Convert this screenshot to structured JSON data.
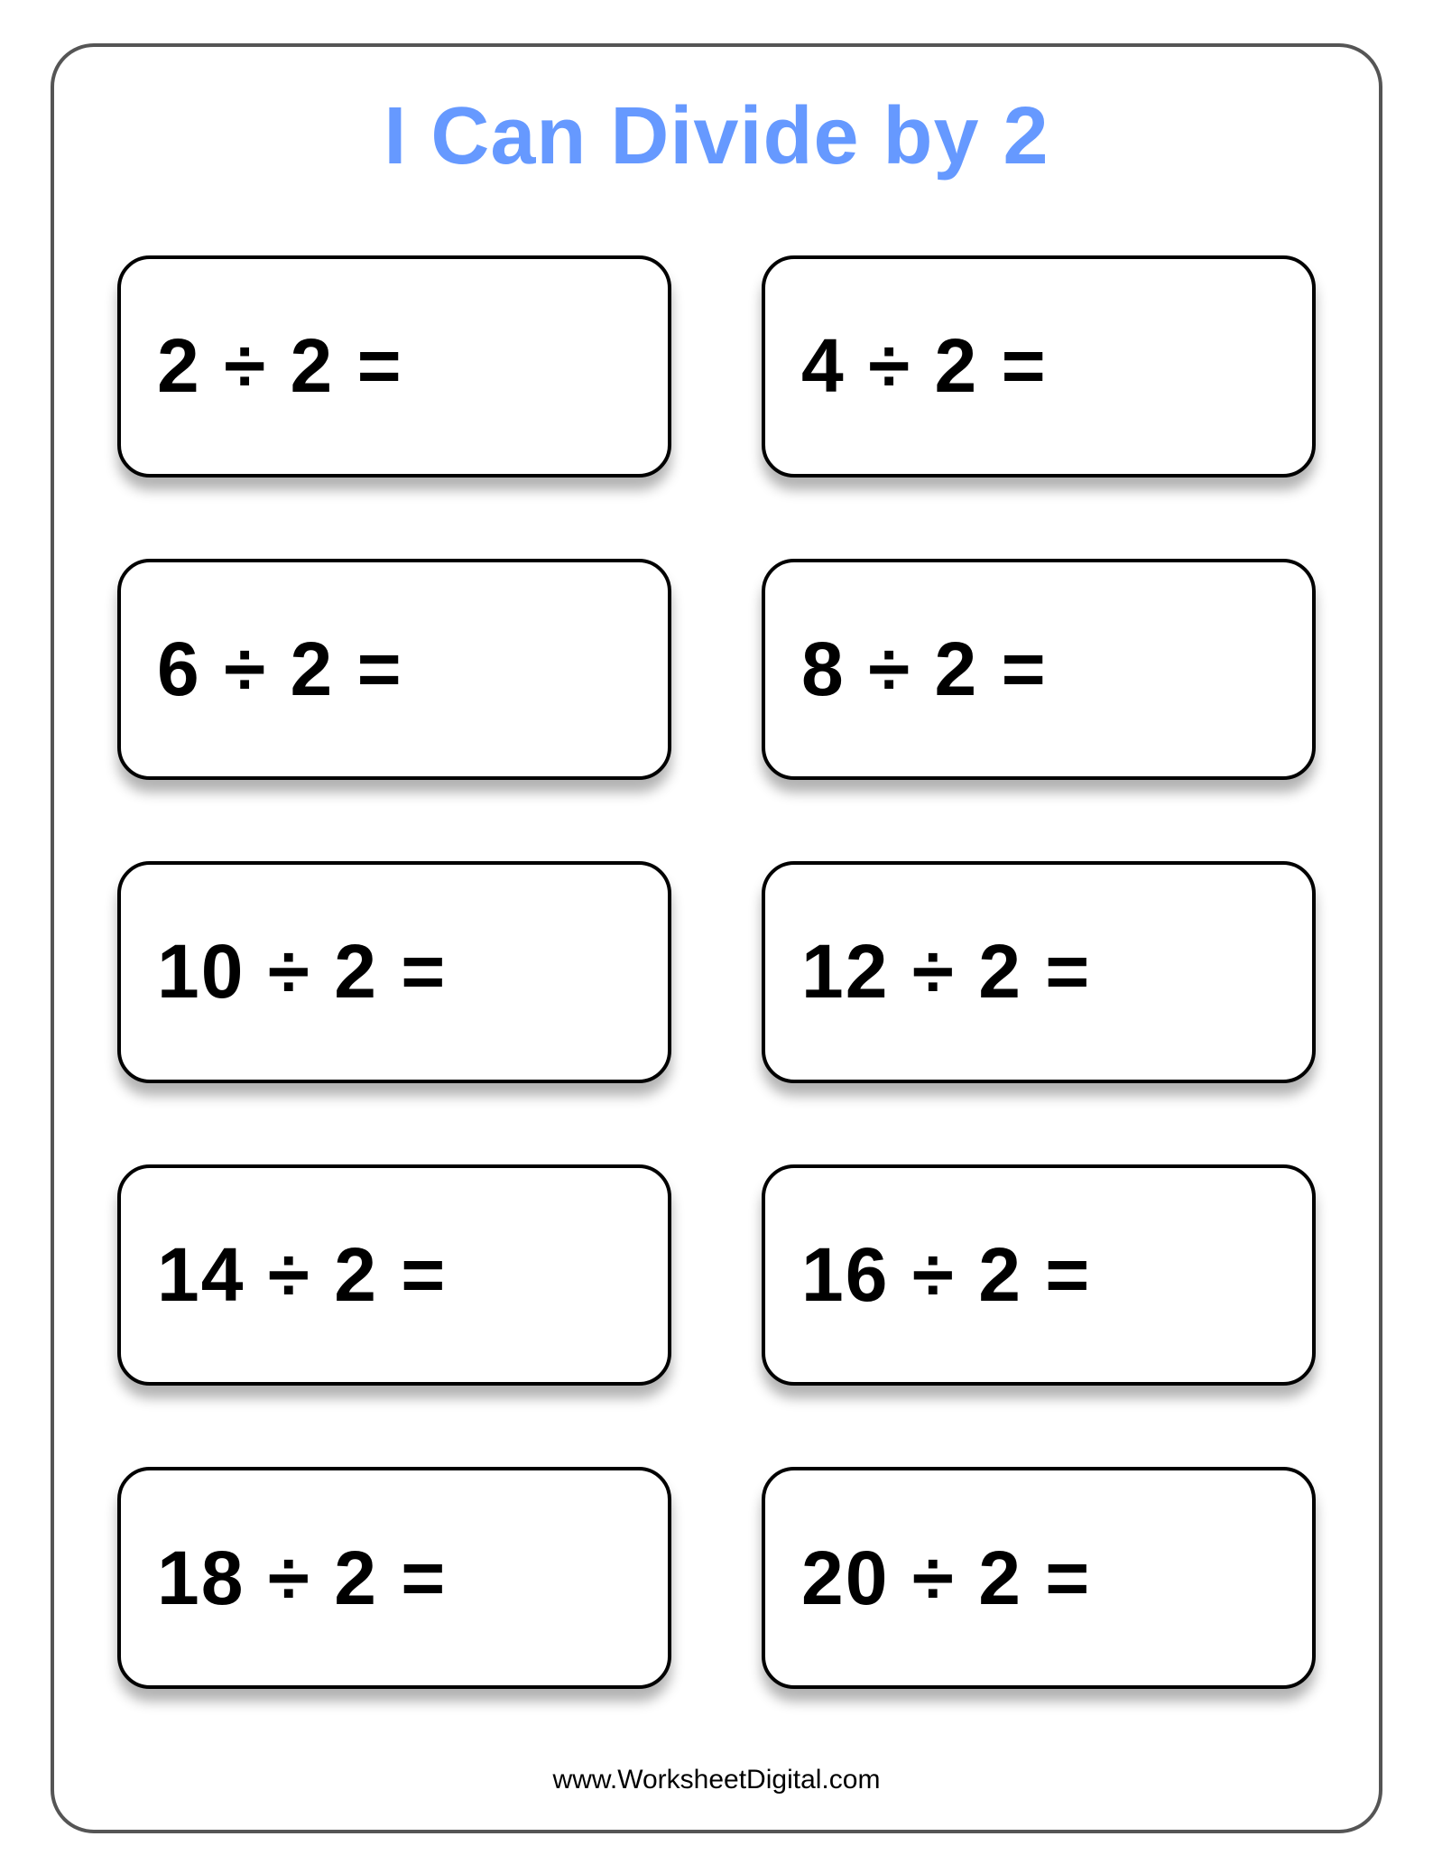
{
  "title": "I Can Divide by 2",
  "title_color": "#6699ff",
  "title_fontsize": 90,
  "frame_border_color": "#555555",
  "frame_border_radius": 48,
  "card_border_color": "#000000",
  "card_border_radius": 36,
  "card_shadow": "0 14px 14px rgba(0,0,0,0.30)",
  "problem_fontsize": 84,
  "problem_color": "#000000",
  "background_color": "#ffffff",
  "grid_columns": 2,
  "grid_rows": 5,
  "operator": "÷",
  "equals": "=",
  "problems": [
    {
      "dividend": "2",
      "divisor": "2"
    },
    {
      "dividend": "4",
      "divisor": "2"
    },
    {
      "dividend": "6",
      "divisor": "2"
    },
    {
      "dividend": "8",
      "divisor": "2"
    },
    {
      "dividend": "10",
      "divisor": "2"
    },
    {
      "dividend": "12",
      "divisor": "2"
    },
    {
      "dividend": "14",
      "divisor": "2"
    },
    {
      "dividend": "16",
      "divisor": "2"
    },
    {
      "dividend": "18",
      "divisor": "2"
    },
    {
      "dividend": "20",
      "divisor": "2"
    }
  ],
  "footer": "www.WorksheetDigital.com",
  "footer_fontsize": 30,
  "footer_color": "#000000"
}
